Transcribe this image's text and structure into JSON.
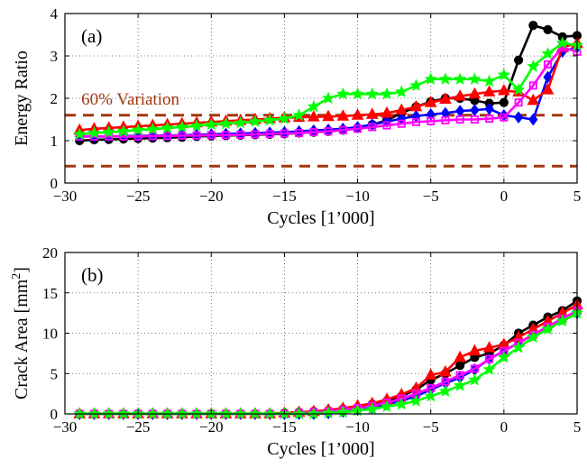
{
  "chart_data": [
    {
      "type": "line",
      "panel_label": "(a)",
      "xlabel": "Cycles [1’000]",
      "ylabel": "Energy Ratio",
      "xlim": [
        -30,
        5
      ],
      "ylim": [
        0,
        4
      ],
      "xticks": [
        "−30",
        "−25",
        "−20",
        "−15",
        "−10",
        "−5",
        "0",
        "5"
      ],
      "yticks": [
        "0",
        "1",
        "2",
        "3",
        "4"
      ],
      "xtick_values": [
        -30,
        -25,
        -20,
        -15,
        -10,
        -5,
        0,
        5
      ],
      "ytick_values": [
        0,
        1,
        2,
        3,
        4
      ],
      "grid": true,
      "annotation": {
        "text": "60% Variation",
        "x": -29.5,
        "y": 2.0,
        "color": "#a0380e"
      },
      "reference_lines": [
        {
          "y": 1.6,
          "color": "#a0380e",
          "style": "dashed"
        },
        {
          "y": 0.4,
          "color": "#a0380e",
          "style": "dashed"
        }
      ],
      "series": [
        {
          "color": "#000000",
          "marker": "circle",
          "x": [
            -29,
            -28,
            -27,
            -26,
            -25,
            -24,
            -23,
            -22,
            -21,
            -20,
            -19,
            -18,
            -17,
            -16,
            -15,
            -14,
            -13,
            -12,
            -11,
            -10,
            -9,
            -8,
            -7,
            -6,
            -5,
            -4,
            -3,
            -2,
            -1,
            0,
            1,
            2,
            3,
            4,
            5
          ],
          "y": [
            1.0,
            1.02,
            1.03,
            1.04,
            1.05,
            1.06,
            1.07,
            1.08,
            1.1,
            1.11,
            1.12,
            1.13,
            1.14,
            1.15,
            1.16,
            1.18,
            1.2,
            1.22,
            1.25,
            1.3,
            1.38,
            1.48,
            1.65,
            1.8,
            1.92,
            2.0,
            2.0,
            1.95,
            1.88,
            1.9,
            2.9,
            3.72,
            3.62,
            3.45,
            3.48
          ]
        },
        {
          "color": "#0000ff",
          "marker": "diamond",
          "x": [
            -29,
            -28,
            -27,
            -26,
            -25,
            -24,
            -23,
            -22,
            -21,
            -20,
            -19,
            -18,
            -17,
            -16,
            -15,
            -14,
            -13,
            -12,
            -11,
            -10,
            -9,
            -8,
            -7,
            -6,
            -5,
            -4,
            -3,
            -2,
            -1,
            0,
            1,
            2,
            3,
            4,
            5
          ],
          "y": [
            1.1,
            1.1,
            1.1,
            1.11,
            1.11,
            1.12,
            1.12,
            1.13,
            1.14,
            1.15,
            1.16,
            1.17,
            1.18,
            1.19,
            1.2,
            1.22,
            1.24,
            1.26,
            1.28,
            1.32,
            1.38,
            1.45,
            1.52,
            1.58,
            1.62,
            1.65,
            1.7,
            1.72,
            1.75,
            1.6,
            1.55,
            1.5,
            2.5,
            3.1,
            3.2
          ]
        },
        {
          "color": "#ff0000",
          "marker": "triangle",
          "x": [
            -29,
            -28,
            -27,
            -26,
            -25,
            -24,
            -23,
            -22,
            -21,
            -20,
            -19,
            -18,
            -17,
            -16,
            -15,
            -14,
            -13,
            -12,
            -11,
            -10,
            -9,
            -8,
            -7,
            -6,
            -5,
            -4,
            -3,
            -2,
            -1,
            0,
            1,
            2,
            3,
            4,
            5
          ],
          "y": [
            1.25,
            1.28,
            1.3,
            1.32,
            1.34,
            1.36,
            1.38,
            1.4,
            1.42,
            1.44,
            1.46,
            1.48,
            1.5,
            1.52,
            1.54,
            1.55,
            1.56,
            1.57,
            1.58,
            1.6,
            1.62,
            1.65,
            1.72,
            1.8,
            1.9,
            1.98,
            2.05,
            2.1,
            2.15,
            2.18,
            2.15,
            1.95,
            2.2,
            3.2,
            3.3
          ]
        },
        {
          "color": "#ff00ff",
          "marker": "square",
          "x": [
            -29,
            -28,
            -27,
            -26,
            -25,
            -24,
            -23,
            -22,
            -21,
            -20,
            -19,
            -18,
            -17,
            -16,
            -15,
            -14,
            -13,
            -12,
            -11,
            -10,
            -9,
            -8,
            -7,
            -6,
            -5,
            -4,
            -3,
            -2,
            -1,
            0,
            1,
            2,
            3,
            4,
            5
          ],
          "y": [
            1.1,
            1.1,
            1.1,
            1.1,
            1.1,
            1.11,
            1.11,
            1.12,
            1.12,
            1.13,
            1.13,
            1.14,
            1.15,
            1.16,
            1.17,
            1.18,
            1.2,
            1.22,
            1.25,
            1.28,
            1.32,
            1.36,
            1.4,
            1.44,
            1.46,
            1.48,
            1.5,
            1.5,
            1.52,
            1.55,
            1.9,
            2.3,
            2.8,
            3.2,
            3.1
          ]
        },
        {
          "color": "#00ff00",
          "marker": "star",
          "x": [
            -29,
            -28,
            -27,
            -26,
            -25,
            -24,
            -23,
            -22,
            -21,
            -20,
            -19,
            -18,
            -17,
            -16,
            -15,
            -14,
            -13,
            -12,
            -11,
            -10,
            -9,
            -8,
            -7,
            -6,
            -5,
            -4,
            -3,
            -2,
            -1,
            0,
            1,
            2,
            3,
            4,
            5
          ],
          "y": [
            1.15,
            1.18,
            1.2,
            1.22,
            1.25,
            1.27,
            1.3,
            1.32,
            1.35,
            1.38,
            1.4,
            1.42,
            1.45,
            1.48,
            1.52,
            1.6,
            1.8,
            2.0,
            2.1,
            2.1,
            2.1,
            2.1,
            2.15,
            2.3,
            2.45,
            2.45,
            2.45,
            2.45,
            2.4,
            2.55,
            2.2,
            2.75,
            3.05,
            3.3,
            3.25
          ]
        }
      ]
    },
    {
      "type": "line",
      "panel_label": "(b)",
      "xlabel": "Cycles [1’000]",
      "ylabel_main": "Crack Area [mm",
      "ylabel_sup": "2",
      "ylabel_end": "]",
      "xlim": [
        -30,
        5
      ],
      "ylim": [
        0,
        20
      ],
      "xticks": [
        "−30",
        "−25",
        "−20",
        "−15",
        "−10",
        "−5",
        "0",
        "5"
      ],
      "yticks": [
        "0",
        "5",
        "10",
        "15",
        "20"
      ],
      "xtick_values": [
        -30,
        -25,
        -20,
        -15,
        -10,
        -5,
        0,
        5
      ],
      "ytick_values": [
        0,
        5,
        10,
        15,
        20
      ],
      "grid": true,
      "series": [
        {
          "color": "#000000",
          "marker": "circle",
          "x": [
            -29,
            -28,
            -27,
            -26,
            -25,
            -24,
            -23,
            -22,
            -21,
            -20,
            -19,
            -18,
            -17,
            -16,
            -15,
            -14,
            -13,
            -12,
            -11,
            -10,
            -9,
            -8,
            -7,
            -6,
            -5,
            -4,
            -3,
            -2,
            -1,
            0,
            1,
            2,
            3,
            4,
            5
          ],
          "y": [
            0,
            0,
            0,
            0,
            0,
            0,
            0,
            0,
            0,
            0,
            0,
            0,
            0,
            0,
            0.1,
            0.2,
            0.3,
            0.4,
            0.6,
            0.8,
            1.2,
            1.6,
            2.2,
            3.0,
            4.2,
            5.0,
            6.0,
            7.0,
            7.5,
            8.5,
            10.0,
            11.0,
            12.0,
            12.8,
            14.0
          ]
        },
        {
          "color": "#0000ff",
          "marker": "diamond",
          "x": [
            -29,
            -28,
            -27,
            -26,
            -25,
            -24,
            -23,
            -22,
            -21,
            -20,
            -19,
            -18,
            -17,
            -16,
            -15,
            -14,
            -13,
            -12,
            -11,
            -10,
            -9,
            -8,
            -7,
            -6,
            -5,
            -4,
            -3,
            -2,
            -1,
            0,
            1,
            2,
            3,
            4,
            5
          ],
          "y": [
            0,
            0,
            0,
            0,
            0,
            0,
            0,
            0,
            0,
            0,
            0,
            0,
            0,
            0,
            0,
            0,
            0,
            0.1,
            0.3,
            0.5,
            0.8,
            1.2,
            1.6,
            2.2,
            3.0,
            3.8,
            4.5,
            5.5,
            6.8,
            7.8,
            8.8,
            9.8,
            10.8,
            11.8,
            12.5
          ]
        },
        {
          "color": "#ff0000",
          "marker": "triangle",
          "x": [
            -29,
            -28,
            -27,
            -26,
            -25,
            -24,
            -23,
            -22,
            -21,
            -20,
            -19,
            -18,
            -17,
            -16,
            -15,
            -14,
            -13,
            -12,
            -11,
            -10,
            -9,
            -8,
            -7,
            -6,
            -5,
            -4,
            -3,
            -2,
            -1,
            0,
            1,
            2,
            3,
            4,
            5
          ],
          "y": [
            0,
            0,
            0,
            0,
            0,
            0,
            0,
            0,
            0,
            0,
            0,
            0,
            0,
            0,
            0.1,
            0.2,
            0.3,
            0.5,
            0.7,
            1.0,
            1.3,
            1.8,
            2.4,
            3.2,
            4.8,
            5.2,
            7.0,
            7.8,
            8.2,
            8.6,
            9.5,
            10.5,
            11.5,
            12.5,
            13.5
          ]
        },
        {
          "color": "#ff00ff",
          "marker": "square",
          "x": [
            -29,
            -28,
            -27,
            -26,
            -25,
            -24,
            -23,
            -22,
            -21,
            -20,
            -19,
            -18,
            -17,
            -16,
            -15,
            -14,
            -13,
            -12,
            -11,
            -10,
            -9,
            -8,
            -7,
            -6,
            -5,
            -4,
            -3,
            -2,
            -1,
            0,
            1,
            2,
            3,
            4,
            5
          ],
          "y": [
            0,
            0,
            0,
            0,
            0,
            0,
            0,
            0,
            0,
            0,
            0,
            0,
            0,
            0,
            0,
            0.1,
            0.2,
            0.3,
            0.5,
            0.7,
            1.0,
            1.4,
            1.9,
            2.5,
            3.2,
            4.0,
            4.8,
            5.6,
            6.8,
            7.8,
            8.8,
            9.8,
            10.8,
            11.8,
            12.8
          ]
        },
        {
          "color": "#00ff00",
          "marker": "star",
          "x": [
            -29,
            -28,
            -27,
            -26,
            -25,
            -24,
            -23,
            -22,
            -21,
            -20,
            -19,
            -18,
            -17,
            -16,
            -15,
            -14,
            -13,
            -12,
            -11,
            -10,
            -9,
            -8,
            -7,
            -6,
            -5,
            -4,
            -3,
            -2,
            -1,
            0,
            1,
            2,
            3,
            4,
            5
          ],
          "y": [
            0,
            0,
            0,
            0,
            0,
            0,
            0,
            0,
            0,
            0,
            0,
            0,
            0,
            0,
            0,
            0,
            0,
            0.1,
            0.2,
            0.4,
            0.6,
            0.9,
            1.2,
            1.6,
            2.2,
            2.8,
            3.5,
            4.2,
            5.5,
            7.0,
            8.2,
            9.5,
            10.5,
            11.5,
            12.5
          ]
        }
      ]
    }
  ]
}
